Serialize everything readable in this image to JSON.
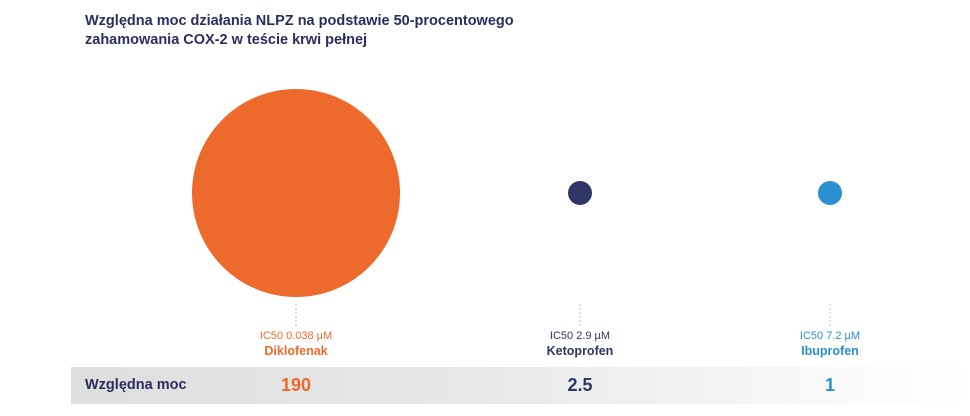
{
  "colors": {
    "diklofenak": "#ee6a2c",
    "ketoprofen": "#2f3564",
    "ibuprofen": "#2b8fd0",
    "title": "#2b2d5e",
    "connector": "#bdbdbd"
  },
  "chart_data": {
    "type": "bubble",
    "title_lines": [
      "Względna moc działania NLPZ na podstawie 50-procentowego",
      "zahamowania COX-2 w teście krwi pełnej"
    ],
    "row_label": "Względna moc",
    "drugs": [
      {
        "name": "Diklofenak",
        "ic50": "IC50 0.038 µM",
        "relative_potency": 190,
        "potency_label": "190",
        "color": "#ee6a2c"
      },
      {
        "name": "Ketoprofen",
        "ic50": "IC50 2.9 µM",
        "relative_potency": 2.5,
        "potency_label": "2.5",
        "color": "#2f3564"
      },
      {
        "name": "Ibuprofen",
        "ic50": "IC50 7.2 µM",
        "relative_potency": 1,
        "potency_label": "1",
        "color": "#2b8fd0"
      }
    ]
  }
}
